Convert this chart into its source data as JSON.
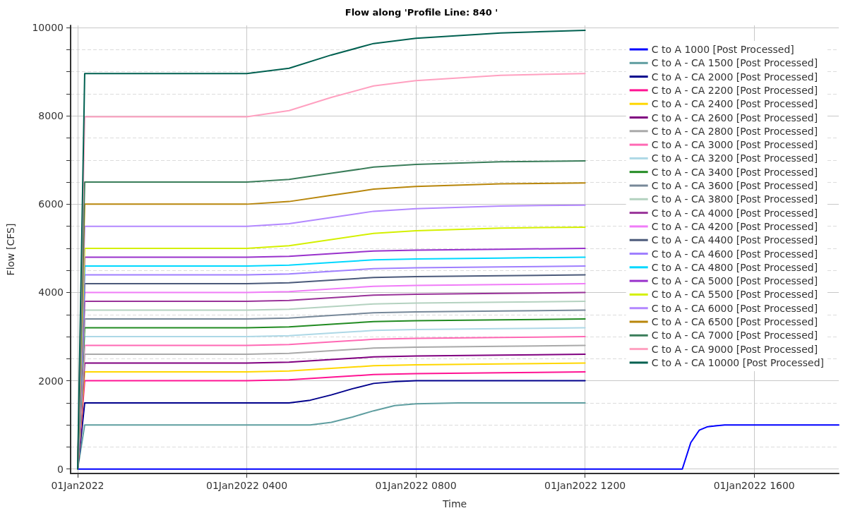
{
  "chart_data": {
    "type": "line",
    "title": "Flow along 'Profile Line: 840 '",
    "xlabel": "Time",
    "ylabel": "Flow [CFS]",
    "x": [
      "2022-01-01T00:00",
      "2022-01-01T00:10",
      "2022-01-01T04:00",
      "2022-01-01T05:00",
      "2022-01-01T06:00",
      "2022-01-01T07:00",
      "2022-01-01T08:00",
      "2022-01-01T10:00",
      "2022-01-01T12:00"
    ],
    "xlim": [
      "2021-12-31T23:50",
      "2022-01-01T18:00"
    ],
    "xticks": [
      {
        "value": "2022-01-01T00:00",
        "label": "01Jan2022"
      },
      {
        "value": "2022-01-01T04:00",
        "label": "01Jan2022 0400"
      },
      {
        "value": "2022-01-01T08:00",
        "label": "01Jan2022 0800"
      },
      {
        "value": "2022-01-01T12:00",
        "label": "01Jan2022 1200"
      },
      {
        "value": "2022-01-01T16:00",
        "label": "01Jan2022 1600"
      }
    ],
    "ylim": [
      -100,
      10050
    ],
    "yticks": [
      0,
      {
        "value": 500,
        "label": null
      },
      {
        "value": 1000,
        "label": null
      },
      {
        "value": 1500,
        "label": null
      },
      2000,
      {
        "value": 2500,
        "label": null
      },
      {
        "value": 3000,
        "label": null
      },
      {
        "value": 3500,
        "label": null
      },
      4000,
      {
        "value": 4500,
        "label": null
      },
      {
        "value": 5000,
        "label": null
      },
      {
        "value": 5500,
        "label": null
      },
      6000,
      {
        "value": 6500,
        "label": null
      },
      {
        "value": 7000,
        "label": null
      },
      {
        "value": 7500,
        "label": null
      },
      8000,
      {
        "value": 8500,
        "label": null
      },
      {
        "value": 9000,
        "label": null
      },
      {
        "value": 9500,
        "label": null
      },
      10000
    ],
    "grid": true,
    "legend": "top right",
    "marker": "none",
    "line_style": "solid",
    "series": [
      {
        "name": "C to A 1000 [Post Processed]",
        "color": "#0000ff",
        "x": [
          "2022-01-01T00:00",
          "2022-01-01T14:18",
          "2022-01-01T14:30",
          "2022-01-01T14:42",
          "2022-01-01T14:54",
          "2022-01-01T15:18",
          "2022-01-01T16:00",
          "2022-01-01T18:00"
        ],
        "values": [
          0,
          0,
          600,
          880,
          960,
          1000,
          1000,
          1000
        ]
      },
      {
        "name": "C to A - CA 1500 [Post Processed]",
        "color": "#5f9ea0",
        "x": [
          "2022-01-01T00:00",
          "2022-01-01T00:10",
          "2022-01-01T04:00",
          "2022-01-01T05:30",
          "2022-01-01T06:00",
          "2022-01-01T06:30",
          "2022-01-01T07:00",
          "2022-01-01T07:30",
          "2022-01-01T08:00",
          "2022-01-01T09:00",
          "2022-01-01T10:00",
          "2022-01-01T12:00"
        ],
        "values": [
          0,
          1000,
          1000,
          1000,
          1060,
          1180,
          1320,
          1440,
          1480,
          1500,
          1500,
          1500
        ]
      },
      {
        "name": "C to A - CA 2000 [Post Processed]",
        "color": "#00008b",
        "x": [
          "2022-01-01T00:00",
          "2022-01-01T00:10",
          "2022-01-01T04:00",
          "2022-01-01T05:00",
          "2022-01-01T05:30",
          "2022-01-01T06:00",
          "2022-01-01T06:30",
          "2022-01-01T07:00",
          "2022-01-01T07:30",
          "2022-01-01T08:00",
          "2022-01-01T10:00",
          "2022-01-01T12:00"
        ],
        "values": [
          0,
          1500,
          1500,
          1500,
          1560,
          1680,
          1820,
          1940,
          1980,
          2000,
          2000,
          2000
        ]
      },
      {
        "name": "C to A - CA 2200 [Post Processed]",
        "color": "#ff1493",
        "values": [
          0,
          2000,
          2000,
          2020,
          2080,
          2140,
          2160,
          2180,
          2200
        ]
      },
      {
        "name": "C to A - CA 2400 [Post Processed]",
        "color": "#ffd700",
        "values": [
          0,
          2200,
          2200,
          2220,
          2280,
          2340,
          2360,
          2380,
          2400
        ]
      },
      {
        "name": "C to A - CA 2600 [Post Processed]",
        "color": "#800080",
        "values": [
          0,
          2400,
          2400,
          2420,
          2480,
          2540,
          2560,
          2580,
          2600
        ]
      },
      {
        "name": "C to A - CA 2800 [Post Processed]",
        "color": "#a9a9a9",
        "values": [
          0,
          2600,
          2600,
          2620,
          2680,
          2740,
          2760,
          2780,
          2800
        ]
      },
      {
        "name": "C to A - CA 3000 [Post Processed]",
        "color": "#ff69b4",
        "values": [
          0,
          2800,
          2800,
          2820,
          2880,
          2940,
          2960,
          2980,
          3000
        ]
      },
      {
        "name": "C to A - CA 3200 [Post Processed]",
        "color": "#add8e6",
        "values": [
          0,
          3000,
          3000,
          3020,
          3080,
          3140,
          3160,
          3180,
          3200
        ]
      },
      {
        "name": "C to A - CA 3400 [Post Processed]",
        "color": "#228b22",
        "values": [
          0,
          3200,
          3200,
          3220,
          3280,
          3340,
          3360,
          3380,
          3400
        ]
      },
      {
        "name": "C to A - CA 3600 [Post Processed]",
        "color": "#778899",
        "values": [
          0,
          3400,
          3400,
          3420,
          3480,
          3540,
          3560,
          3580,
          3600
        ]
      },
      {
        "name": "C to A - CA 3800 [Post Processed]",
        "color": "#b4d2c0",
        "values": [
          0,
          3600,
          3600,
          3620,
          3680,
          3740,
          3760,
          3780,
          3800
        ]
      },
      {
        "name": "C to A - CA 4000 [Post Processed]",
        "color": "#993399",
        "values": [
          0,
          3800,
          3800,
          3820,
          3880,
          3940,
          3960,
          3980,
          4000
        ]
      },
      {
        "name": "C to A - CA 4200 [Post Processed]",
        "color": "#f07cf8",
        "values": [
          0,
          4000,
          4000,
          4020,
          4080,
          4140,
          4160,
          4180,
          4200
        ]
      },
      {
        "name": "C to A - CA 4400 [Post Processed]",
        "color": "#4b5a7a",
        "values": [
          0,
          4200,
          4200,
          4220,
          4280,
          4340,
          4360,
          4380,
          4400
        ]
      },
      {
        "name": "C to A - CA 4600 [Post Processed]",
        "color": "#9f7fff",
        "values": [
          0,
          4400,
          4400,
          4420,
          4480,
          4540,
          4560,
          4580,
          4600
        ]
      },
      {
        "name": "C to A - CA 4800 [Post Processed]",
        "color": "#00d8ff",
        "values": [
          0,
          4600,
          4600,
          4620,
          4680,
          4740,
          4760,
          4780,
          4800
        ]
      },
      {
        "name": "C to A - CA 5000 [Post Processed]",
        "color": "#9932cc",
        "values": [
          0,
          4800,
          4800,
          4820,
          4880,
          4940,
          4960,
          4980,
          5000
        ]
      },
      {
        "name": "C to A - CA 5500 [Post Processed]",
        "color": "#d4f000",
        "values": [
          0,
          5000,
          5000,
          5060,
          5200,
          5340,
          5400,
          5460,
          5480
        ]
      },
      {
        "name": "C to A - CA 6000 [Post Processed]",
        "color": "#b388ff",
        "values": [
          0,
          5500,
          5500,
          5560,
          5700,
          5840,
          5900,
          5960,
          5980
        ]
      },
      {
        "name": "C to A - CA 6500 [Post Processed]",
        "color": "#b8860b",
        "values": [
          0,
          6000,
          6000,
          6060,
          6200,
          6340,
          6400,
          6460,
          6480
        ]
      },
      {
        "name": "C to A - CA 7000 [Post Processed]",
        "color": "#3a7d5a",
        "values": [
          0,
          6500,
          6500,
          6560,
          6700,
          6840,
          6900,
          6960,
          6980
        ]
      },
      {
        "name": "C to A - CA 9000 [Post Processed]",
        "color": "#ffa0c0",
        "values": [
          0,
          7980,
          7980,
          8120,
          8420,
          8680,
          8800,
          8920,
          8960
        ]
      },
      {
        "name": "C to A - CA 10000 [Post Processed]",
        "color": "#006050",
        "values": [
          0,
          8960,
          8960,
          9080,
          9380,
          9640,
          9760,
          9880,
          9940
        ]
      }
    ]
  }
}
